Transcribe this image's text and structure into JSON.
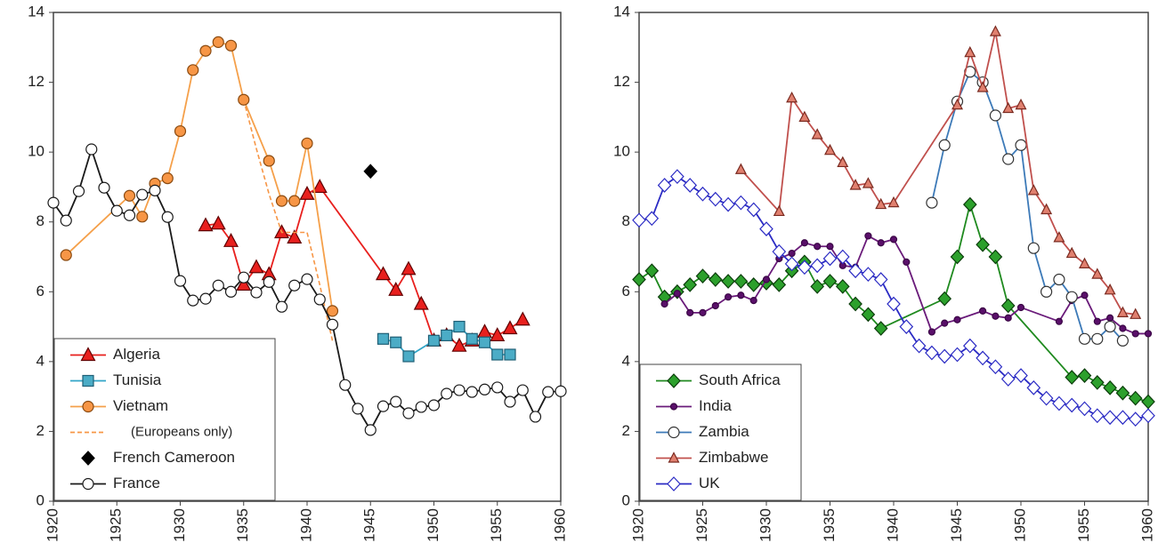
{
  "chart_data": [
    {
      "type": "line",
      "xlim": [
        1920,
        1960
      ],
      "xticks": [
        1920,
        1925,
        1930,
        1935,
        1940,
        1945,
        1950,
        1955,
        1960
      ],
      "ylim": [
        0,
        14
      ],
      "yticks": [
        0,
        2,
        4,
        6,
        8,
        10,
        12,
        14
      ],
      "legend": "lower left",
      "series": [
        {
          "name": "Algeria",
          "color": "#e8201e",
          "marker": "triangle",
          "marker_fill": "#e8201e",
          "marker_edge": "#600000",
          "x": [
            1932,
            1933,
            1934,
            1935,
            1936,
            1937,
            1938,
            1939,
            1940,
            1941,
            1946,
            1947,
            1948,
            1949,
            1950,
            1951,
            1952,
            1953,
            1954,
            1955,
            1956,
            1957
          ],
          "values": [
            7.9,
            7.95,
            7.45,
            6.2,
            6.7,
            6.5,
            7.7,
            7.55,
            8.8,
            9.0,
            6.5,
            6.05,
            6.65,
            5.65,
            4.6,
            4.75,
            4.45,
            4.6,
            4.85,
            4.75,
            4.95,
            5.2
          ]
        },
        {
          "name": "Tunisia",
          "color": "#31a5c8",
          "marker": "square",
          "marker_fill": "#4bacc6",
          "marker_edge": "#1f5f75",
          "x": [
            1946,
            1947,
            1948,
            1950,
            1951,
            1952,
            1953,
            1954,
            1955,
            1956
          ],
          "values": [
            4.65,
            4.55,
            4.15,
            4.6,
            4.75,
            5.0,
            4.65,
            4.55,
            4.2,
            4.2
          ]
        },
        {
          "name": "Vietnam",
          "color": "#f5a04a",
          "marker": "circle",
          "marker_fill": "#f79646",
          "marker_edge": "#8a4a10",
          "x": [
            1921,
            1926,
            1927,
            1928,
            1929,
            1930,
            1931,
            1932,
            1933,
            1934,
            1935,
            1937,
            1938,
            1939,
            1940,
            1942
          ],
          "values": [
            7.05,
            8.75,
            8.15,
            9.1,
            9.25,
            10.6,
            12.35,
            12.9,
            13.15,
            13.05,
            11.5,
            9.75,
            8.6,
            8.6,
            10.25,
            5.45
          ]
        },
        {
          "name": "(Europeans only)",
          "color": "#f79646",
          "marker": "none",
          "dash": true,
          "x": [
            1935,
            1936,
            1937,
            1938,
            1939,
            1940,
            1941,
            1942
          ],
          "values": [
            11.5,
            10.1,
            8.8,
            7.7,
            7.7,
            7.7,
            6.2,
            4.6
          ]
        },
        {
          "name": "French Cameroon",
          "color": "#000000",
          "marker": "diamond",
          "marker_fill": "#000000",
          "marker_edge": "#000000",
          "line": false,
          "x": [
            1945
          ],
          "values": [
            9.45
          ]
        },
        {
          "name": "France",
          "color": "#1a1a1a",
          "marker": "circle",
          "marker_fill": "#ffffff",
          "marker_edge": "#1a1a1a",
          "x": [
            1920,
            1921,
            1922,
            1923,
            1924,
            1925,
            1926,
            1927,
            1928,
            1929,
            1930,
            1931,
            1932,
            1933,
            1934,
            1935,
            1936,
            1937,
            1938,
            1939,
            1940,
            1941,
            1942,
            1943,
            1944,
            1945,
            1946,
            1947,
            1948,
            1949,
            1950,
            1951,
            1952,
            1953,
            1954,
            1955,
            1956,
            1957,
            1958,
            1959,
            1960
          ],
          "values": [
            8.55,
            8.04,
            8.88,
            10.08,
            8.98,
            8.32,
            8.19,
            8.78,
            8.9,
            8.14,
            6.31,
            5.75,
            5.8,
            6.18,
            6.0,
            6.41,
            5.98,
            6.28,
            5.57,
            6.18,
            6.36,
            5.78,
            5.06,
            3.33,
            2.65,
            2.04,
            2.72,
            2.85,
            2.52,
            2.7,
            2.75,
            3.08,
            3.18,
            3.13,
            3.2,
            3.26,
            2.85,
            3.18,
            2.42,
            3.13,
            3.15
          ]
        }
      ]
    },
    {
      "type": "line",
      "xlim": [
        1920,
        1960
      ],
      "xticks": [
        1920,
        1925,
        1930,
        1935,
        1940,
        1945,
        1950,
        1955,
        1960
      ],
      "ylim": [
        0,
        14
      ],
      "yticks": [
        0,
        2,
        4,
        6,
        8,
        10,
        12,
        14
      ],
      "legend": "lower left",
      "series": [
        {
          "name": "South Africa",
          "color": "#1f8a1f",
          "marker": "diamond",
          "marker_fill": "#2ca02c",
          "marker_edge": "#0b3d0b",
          "x": [
            1920,
            1921,
            1922,
            1923,
            1924,
            1925,
            1926,
            1927,
            1928,
            1929,
            1930,
            1931,
            1932,
            1933,
            1934,
            1935,
            1936,
            1937,
            1938,
            1939,
            1944,
            1945,
            1946,
            1947,
            1948,
            1949,
            1954,
            1955,
            1956,
            1957,
            1958,
            1959,
            1960
          ],
          "values": [
            6.35,
            6.6,
            5.85,
            6.0,
            6.2,
            6.45,
            6.35,
            6.3,
            6.3,
            6.2,
            6.25,
            6.2,
            6.6,
            6.85,
            6.15,
            6.3,
            6.15,
            5.65,
            5.35,
            4.95,
            5.8,
            7.0,
            8.5,
            7.35,
            7.0,
            5.6,
            3.55,
            3.6,
            3.4,
            3.25,
            3.1,
            2.95,
            2.85
          ]
        },
        {
          "name": "India",
          "color": "#6a1b7a",
          "marker": "circle-small",
          "marker_fill": "#5a0f6a",
          "marker_edge": "#3a0545",
          "x": [
            1922,
            1923,
            1924,
            1925,
            1926,
            1927,
            1928,
            1929,
            1930,
            1931,
            1932,
            1933,
            1934,
            1935,
            1936,
            1937,
            1938,
            1939,
            1940,
            1941,
            1943,
            1944,
            1945,
            1947,
            1948,
            1949,
            1950,
            1953,
            1954,
            1955,
            1956,
            1957,
            1958,
            1959,
            1960
          ],
          "values": [
            5.65,
            5.95,
            5.4,
            5.4,
            5.6,
            5.85,
            5.9,
            5.75,
            6.35,
            6.95,
            7.1,
            7.4,
            7.3,
            7.3,
            6.75,
            6.7,
            7.6,
            7.4,
            7.5,
            6.85,
            4.85,
            5.1,
            5.2,
            5.45,
            5.3,
            5.25,
            5.55,
            5.15,
            5.75,
            5.9,
            5.15,
            5.25,
            4.95,
            4.8,
            4.8
          ]
        },
        {
          "name": "Zambia",
          "color": "#3d7ab8",
          "marker": "circle",
          "marker_fill": "#ffffff",
          "marker_edge": "#333333",
          "x": [
            1943,
            1944,
            1945,
            1946,
            1947,
            1948,
            1949,
            1950,
            1951,
            1952,
            1953,
            1954,
            1955,
            1956,
            1957,
            1958
          ],
          "values": [
            8.55,
            10.2,
            11.45,
            12.3,
            12.0,
            11.05,
            9.8,
            10.2,
            7.25,
            6.0,
            6.35,
            5.85,
            4.65,
            4.65,
            5.0,
            4.6
          ]
        },
        {
          "name": "Zimbabwe",
          "color": "#c0504d",
          "marker": "triangle-small",
          "marker_fill": "#e0806f",
          "marker_edge": "#7a2a20",
          "x": [
            1928,
            1931,
            1932,
            1933,
            1934,
            1935,
            1936,
            1937,
            1938,
            1939,
            1940,
            1945,
            1946,
            1947,
            1948,
            1949,
            1950,
            1951,
            1952,
            1953,
            1954,
            1955,
            1956,
            1957,
            1958,
            1959
          ],
          "values": [
            9.5,
            8.3,
            11.55,
            11.0,
            10.5,
            10.05,
            9.7,
            9.05,
            9.1,
            8.5,
            8.55,
            11.35,
            12.85,
            11.85,
            13.45,
            11.25,
            11.35,
            8.9,
            8.35,
            7.55,
            7.1,
            6.8,
            6.5,
            6.05,
            5.4,
            5.35
          ]
        },
        {
          "name": "UK",
          "color": "#2b2bc4",
          "marker": "diamond",
          "marker_fill": "#ffffff",
          "marker_edge": "#2b2bc4",
          "x": [
            1920,
            1921,
            1922,
            1923,
            1924,
            1925,
            1926,
            1927,
            1928,
            1929,
            1930,
            1931,
            1932,
            1933,
            1934,
            1935,
            1936,
            1937,
            1938,
            1939,
            1940,
            1941,
            1942,
            1943,
            1944,
            1945,
            1946,
            1947,
            1948,
            1949,
            1950,
            1951,
            1952,
            1953,
            1954,
            1955,
            1956,
            1957,
            1958,
            1959,
            1960
          ],
          "values": [
            8.05,
            8.1,
            9.05,
            9.3,
            9.05,
            8.8,
            8.65,
            8.5,
            8.55,
            8.35,
            7.8,
            7.15,
            6.8,
            6.7,
            6.75,
            6.95,
            7.0,
            6.6,
            6.5,
            6.35,
            5.65,
            5.0,
            4.45,
            4.25,
            4.15,
            4.2,
            4.45,
            4.1,
            3.85,
            3.5,
            3.6,
            3.25,
            2.95,
            2.8,
            2.75,
            2.65,
            2.45,
            2.4,
            2.4,
            2.35,
            2.45
          ]
        }
      ]
    }
  ]
}
